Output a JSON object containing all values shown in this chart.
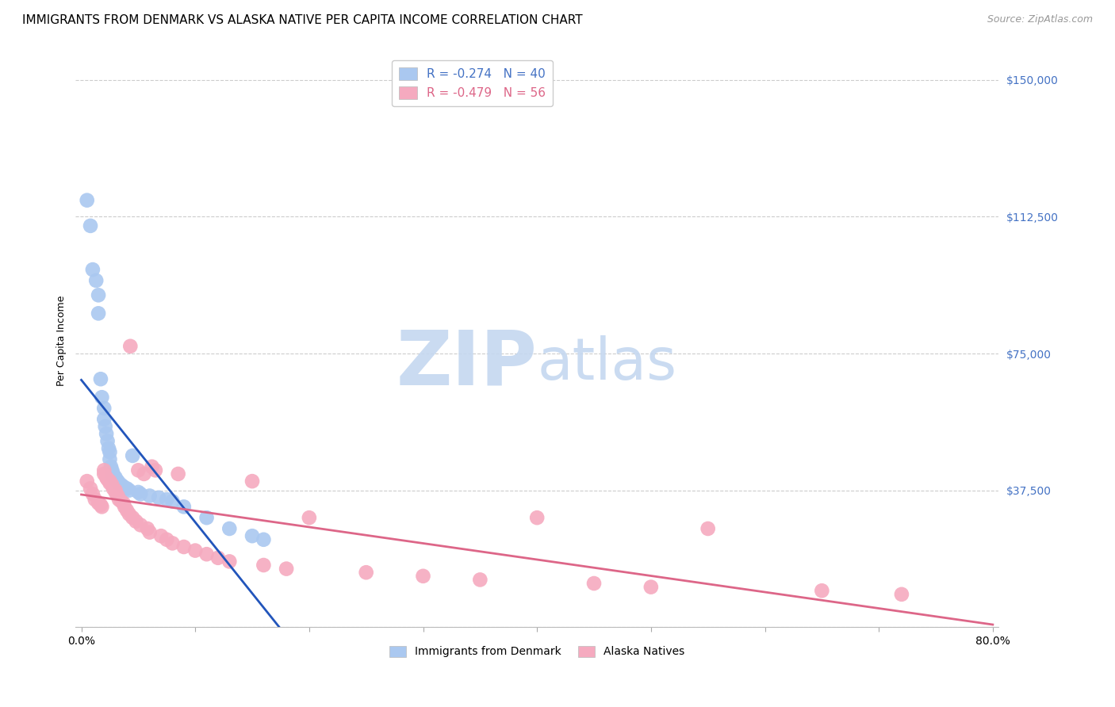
{
  "title": "IMMIGRANTS FROM DENMARK VS ALASKA NATIVE PER CAPITA INCOME CORRELATION CHART",
  "source": "Source: ZipAtlas.com",
  "ylabel": "Per Capita Income",
  "xlim": [
    -0.005,
    0.805
  ],
  "ylim": [
    0,
    157000
  ],
  "ytick_values": [
    0,
    37500,
    75000,
    112500,
    150000
  ],
  "ytick_labels": [
    "",
    "$37,500",
    "$75,000",
    "$112,500",
    "$150,000"
  ],
  "blue_color": "#aac8f0",
  "pink_color": "#f5aabf",
  "blue_line_color": "#2255bb",
  "pink_line_color": "#dd6688",
  "legend_blue_label": "R = -0.274   N = 40",
  "legend_pink_label": "R = -0.479   N = 56",
  "legend_blue_series": "Immigrants from Denmark",
  "legend_pink_series": "Alaska Natives",
  "watermark_zip": "ZIP",
  "watermark_atlas": "atlas",
  "watermark_color_zip": "#c5d8f0",
  "watermark_color_atlas": "#c5d8f0",
  "blue_x": [
    0.005,
    0.008,
    0.01,
    0.013,
    0.015,
    0.015,
    0.017,
    0.018,
    0.02,
    0.02,
    0.021,
    0.022,
    0.023,
    0.024,
    0.025,
    0.025,
    0.026,
    0.027,
    0.028,
    0.028,
    0.03,
    0.03,
    0.032,
    0.033,
    0.035,
    0.037,
    0.04,
    0.042,
    0.045,
    0.05,
    0.052,
    0.06,
    0.068,
    0.075,
    0.08,
    0.09,
    0.11,
    0.13,
    0.15,
    0.16
  ],
  "blue_y": [
    117000,
    110000,
    98000,
    95000,
    91000,
    86000,
    68000,
    63000,
    60000,
    57000,
    55000,
    53000,
    51000,
    49000,
    48000,
    46000,
    44000,
    43000,
    42000,
    41500,
    41000,
    40500,
    40000,
    39500,
    39000,
    38500,
    38000,
    37500,
    47000,
    37000,
    36500,
    36000,
    35500,
    35000,
    34500,
    33000,
    30000,
    27000,
    25000,
    24000
  ],
  "pink_x": [
    0.005,
    0.008,
    0.01,
    0.012,
    0.015,
    0.017,
    0.018,
    0.02,
    0.02,
    0.022,
    0.023,
    0.025,
    0.025,
    0.027,
    0.028,
    0.03,
    0.03,
    0.032,
    0.033,
    0.035,
    0.037,
    0.038,
    0.04,
    0.042,
    0.043,
    0.045,
    0.048,
    0.05,
    0.052,
    0.055,
    0.058,
    0.06,
    0.062,
    0.065,
    0.07,
    0.075,
    0.08,
    0.085,
    0.09,
    0.1,
    0.11,
    0.12,
    0.13,
    0.15,
    0.16,
    0.18,
    0.2,
    0.25,
    0.3,
    0.35,
    0.4,
    0.45,
    0.5,
    0.55,
    0.65,
    0.72
  ],
  "pink_y": [
    40000,
    38000,
    36500,
    35000,
    34000,
    33500,
    33000,
    43000,
    42000,
    41000,
    40500,
    40000,
    39500,
    39000,
    38000,
    37500,
    37000,
    36000,
    35000,
    34500,
    34000,
    33000,
    32000,
    31000,
    77000,
    30000,
    29000,
    43000,
    28000,
    42000,
    27000,
    26000,
    44000,
    43000,
    25000,
    24000,
    23000,
    42000,
    22000,
    21000,
    20000,
    19000,
    18000,
    40000,
    17000,
    16000,
    30000,
    15000,
    14000,
    13000,
    30000,
    12000,
    11000,
    27000,
    10000,
    9000
  ],
  "title_fontsize": 11,
  "axis_label_fontsize": 9,
  "tick_fontsize": 10,
  "source_fontsize": 9,
  "watermark_fontsize": 70,
  "background_color": "#ffffff",
  "grid_color": "#cccccc"
}
